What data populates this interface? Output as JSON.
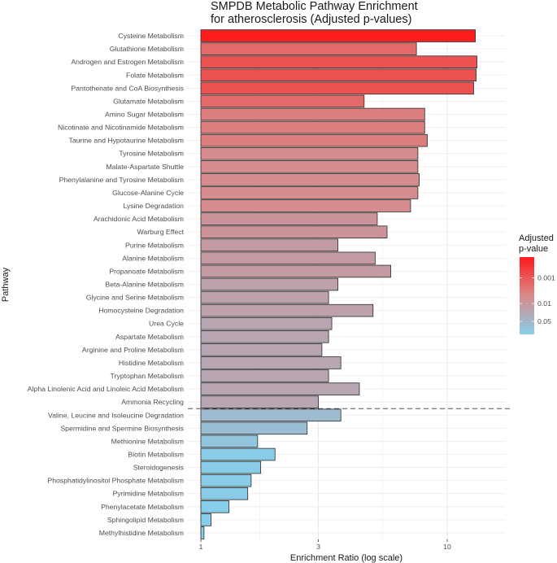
{
  "chart_data": {
    "type": "bar",
    "orientation": "horizontal",
    "title_lines": [
      "SMPDB Metabolic Pathway Enrichment",
      "for atherosclerosis (Adjusted p-values)"
    ],
    "xlabel": "Enrichment Ratio (log scale)",
    "ylabel": "Pathway",
    "x_scale": "log",
    "xlim": [
      0.95,
      14.5
    ],
    "x_ticks": [
      1,
      3,
      10
    ],
    "x_tick_labels": [
      "1",
      "3",
      "10"
    ],
    "grid": true,
    "significance_threshold_between": [
      "Ammonia Recycling",
      "Valine, Leucine and Isoleucine Degradation"
    ],
    "legend": {
      "title_lines": [
        "Adjusted",
        "p-value"
      ],
      "position": "right",
      "tick_values": [
        0.001,
        0.01,
        0.05
      ],
      "tick_labels": [
        "0.001",
        "0.01",
        "0.05"
      ],
      "color_low_p": "#ff1a1a",
      "color_high_p": "#87ceeb",
      "range_neglog10": [
        0.8,
        3.8
      ]
    },
    "categories": [
      "Cysteine Metabolism",
      "Glutathione Metabolism",
      "Androgen and Estrogen Metabolism",
      "Folate Metabolism",
      "Pantothenate and CoA Biosynthesis",
      "Glutamate Metabolism",
      "Amino Sugar Metabolism",
      "Nicotinate and Nicotinamide Metabolism",
      "Taurine and Hypotaurine Metabolism",
      "Tyrosine Metabolism",
      "Malate-Aspartate Shuttle",
      "Phenylalanine and Tyrosine Metabolism",
      "Glucose-Alanine Cycle",
      "Lysine Degradation",
      "Arachidonic Acid Metabolism",
      "Warburg Effect",
      "Purine Metabolism",
      "Alanine Metabolism",
      "Propanoate Metabolism",
      "Beta-Alanine Metabolism",
      "Glycine and Serine Metabolism",
      "Homocysteine Degradation",
      "Urea Cycle",
      "Aspartate Metabolism",
      "Arginine and Proline Metabolism",
      "Histidine Metabolism",
      "Tryptophan Metabolism",
      "Alpha Linolenic Acid and Linoleic Acid Metabolism",
      "Ammonia Recycling",
      "Valine, Leucine and Isoleucine Degradation",
      "Spermidine and Spermine Biosynthesis",
      "Methionine Metabolism",
      "Biotin Metabolism",
      "Steroidogenesis",
      "Phosphatidylinositol Phosphate Metabolism",
      "Pyrimidine Metabolism",
      "Phenylacetate Metabolism",
      "Sphingolipid Metabolism",
      "Methylhistidine Metabolism"
    ],
    "values": [
      13.0,
      7.5,
      13.2,
      13.1,
      12.8,
      4.6,
      8.1,
      8.1,
      8.3,
      7.6,
      7.6,
      7.7,
      7.6,
      7.1,
      5.2,
      5.7,
      3.6,
      5.1,
      5.9,
      3.6,
      3.3,
      5.0,
      3.4,
      3.3,
      3.1,
      3.7,
      3.3,
      4.4,
      3.0,
      3.7,
      2.7,
      1.7,
      2.0,
      1.75,
      1.6,
      1.55,
      1.3,
      1.1,
      1.03
    ],
    "adjusted_p": [
      0.00018,
      0.0018,
      0.0009,
      0.0009,
      0.0009,
      0.0018,
      0.0035,
      0.0035,
      0.0035,
      0.0055,
      0.0055,
      0.0055,
      0.0055,
      0.0055,
      0.0085,
      0.0085,
      0.012,
      0.012,
      0.012,
      0.016,
      0.016,
      0.016,
      0.021,
      0.021,
      0.021,
      0.021,
      0.021,
      0.021,
      0.021,
      0.06,
      0.07,
      0.1,
      0.14,
      0.14,
      0.14,
      0.14,
      0.16,
      0.16,
      0.16
    ]
  }
}
